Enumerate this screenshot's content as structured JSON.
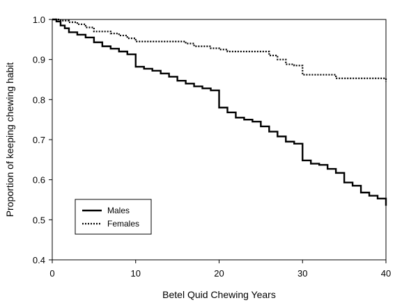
{
  "chart_data": {
    "type": "line",
    "title": "",
    "xlabel": "Betel Quid Chewing Years",
    "ylabel": "Proportion of keeping chewing habit",
    "xlim": [
      0,
      40
    ],
    "ylim": [
      0.4,
      1.0
    ],
    "x_ticks": [
      0,
      10,
      20,
      30,
      40
    ],
    "y_ticks": [
      0.4,
      0.5,
      0.6,
      0.7,
      0.8,
      0.9,
      1.0
    ],
    "x_tick_labels": [
      "0",
      "10",
      "20",
      "30",
      "40"
    ],
    "y_tick_labels": [
      "0.4",
      "0.5",
      "0.6",
      "0.7",
      "0.8",
      "0.9",
      "1.0"
    ],
    "grid": false,
    "legend_position": "bottom-left",
    "series": [
      {
        "name": "Males",
        "line_style": "solid",
        "color": "#000000",
        "x": [
          0,
          0.5,
          1,
          1.5,
          2,
          3,
          4,
          5,
          6,
          7,
          8,
          9,
          10,
          11,
          12,
          13,
          14,
          15,
          16,
          17,
          18,
          19,
          20,
          21,
          22,
          23,
          24,
          25,
          26,
          27,
          28,
          29,
          30,
          31,
          32,
          33,
          34,
          35,
          36,
          37,
          38,
          39,
          40
        ],
        "y": [
          1.0,
          0.995,
          0.985,
          0.978,
          0.968,
          0.962,
          0.955,
          0.943,
          0.933,
          0.927,
          0.92,
          0.913,
          0.882,
          0.877,
          0.872,
          0.865,
          0.857,
          0.847,
          0.84,
          0.833,
          0.828,
          0.823,
          0.78,
          0.768,
          0.755,
          0.75,
          0.745,
          0.733,
          0.72,
          0.708,
          0.695,
          0.69,
          0.648,
          0.64,
          0.637,
          0.627,
          0.617,
          0.593,
          0.585,
          0.568,
          0.56,
          0.553,
          0.535
        ]
      },
      {
        "name": "Females",
        "line_style": "dotted",
        "color": "#000000",
        "x": [
          0,
          1,
          2,
          3,
          4,
          5,
          7,
          8,
          9,
          10,
          16,
          17,
          19,
          20,
          21,
          26,
          27,
          28,
          29,
          30,
          34,
          40
        ],
        "y": [
          1.0,
          0.997,
          0.993,
          0.988,
          0.98,
          0.97,
          0.965,
          0.96,
          0.953,
          0.945,
          0.94,
          0.933,
          0.928,
          0.925,
          0.92,
          0.91,
          0.9,
          0.888,
          0.885,
          0.862,
          0.853,
          0.845
        ]
      }
    ]
  }
}
